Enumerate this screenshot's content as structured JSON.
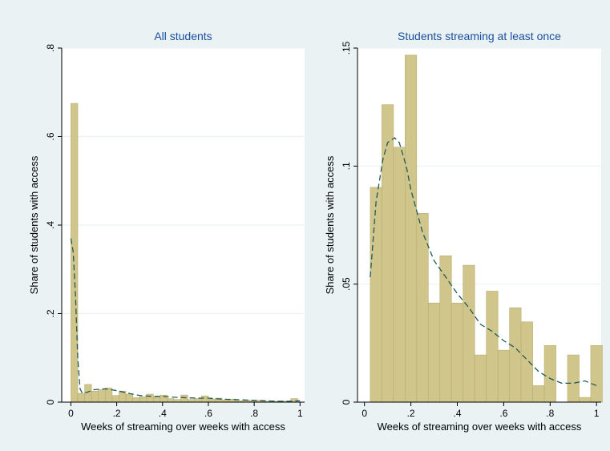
{
  "colors": {
    "outer_bg": "#eaf2f3",
    "plot_bg": "#ffffff",
    "bar_fill": "#d0c58a",
    "bar_stroke": "#b8ad70",
    "density_line": "#1e5a5a",
    "grid": "#eaf2f3",
    "title": "#1a4fa0"
  },
  "chart_data": [
    {
      "type": "bar",
      "title": "All students",
      "xlabel": "Weeks of streaming over weeks with access",
      "ylabel": "Share of students with access",
      "xlim": [
        -0.04,
        1.02
      ],
      "ylim": [
        0,
        0.8
      ],
      "x_ticks": [
        0,
        0.2,
        0.4,
        0.6,
        0.8,
        1
      ],
      "x_tick_labels": [
        "0",
        ".2",
        ".4",
        ".6",
        ".8",
        "1"
      ],
      "y_ticks": [
        0,
        0.2,
        0.4,
        0.6,
        0.8
      ],
      "y_tick_labels": [
        "0",
        ".2",
        ".4",
        ".6",
        ".8"
      ],
      "grid": true,
      "bins": [
        {
          "x0": 0.0,
          "x1": 0.03,
          "value": 0.675
        },
        {
          "x0": 0.03,
          "x1": 0.06,
          "value": 0.02
        },
        {
          "x0": 0.06,
          "x1": 0.09,
          "value": 0.04
        },
        {
          "x0": 0.09,
          "x1": 0.12,
          "value": 0.025
        },
        {
          "x0": 0.12,
          "x1": 0.15,
          "value": 0.028
        },
        {
          "x0": 0.15,
          "x1": 0.18,
          "value": 0.032
        },
        {
          "x0": 0.18,
          "x1": 0.21,
          "value": 0.015
        },
        {
          "x0": 0.21,
          "x1": 0.24,
          "value": 0.025
        },
        {
          "x0": 0.24,
          "x1": 0.27,
          "value": 0.018
        },
        {
          "x0": 0.27,
          "x1": 0.3,
          "value": 0.01
        },
        {
          "x0": 0.3,
          "x1": 0.33,
          "value": 0.012
        },
        {
          "x0": 0.33,
          "x1": 0.36,
          "value": 0.018
        },
        {
          "x0": 0.36,
          "x1": 0.39,
          "value": 0.012
        },
        {
          "x0": 0.39,
          "x1": 0.42,
          "value": 0.016
        },
        {
          "x0": 0.42,
          "x1": 0.45,
          "value": 0.008
        },
        {
          "x0": 0.45,
          "x1": 0.48,
          "value": 0.006
        },
        {
          "x0": 0.48,
          "x1": 0.51,
          "value": 0.016
        },
        {
          "x0": 0.51,
          "x1": 0.54,
          "value": 0.006
        },
        {
          "x0": 0.54,
          "x1": 0.57,
          "value": 0.008
        },
        {
          "x0": 0.57,
          "x1": 0.6,
          "value": 0.014
        },
        {
          "x0": 0.6,
          "x1": 0.63,
          "value": 0.007
        },
        {
          "x0": 0.63,
          "x1": 0.66,
          "value": 0.009
        },
        {
          "x0": 0.66,
          "x1": 0.69,
          "value": 0.005
        },
        {
          "x0": 0.69,
          "x1": 0.72,
          "value": 0.007
        },
        {
          "x0": 0.72,
          "x1": 0.75,
          "value": 0.003
        },
        {
          "x0": 0.75,
          "x1": 0.78,
          "value": 0.005
        },
        {
          "x0": 0.78,
          "x1": 0.81,
          "value": 0.003
        },
        {
          "x0": 0.81,
          "x1": 0.84,
          "value": 0.004
        },
        {
          "x0": 0.84,
          "x1": 0.87,
          "value": 0.002
        },
        {
          "x0": 0.87,
          "x1": 0.9,
          "value": 0.002
        },
        {
          "x0": 0.9,
          "x1": 0.93,
          "value": 0.002
        },
        {
          "x0": 0.93,
          "x1": 0.96,
          "value": 0.002
        },
        {
          "x0": 0.96,
          "x1": 0.99,
          "value": 0.008
        }
      ],
      "density": {
        "x": [
          0.0,
          0.01,
          0.02,
          0.03,
          0.04,
          0.05,
          0.07,
          0.1,
          0.15,
          0.2,
          0.25,
          0.3,
          0.35,
          0.4,
          0.45,
          0.5,
          0.55,
          0.6,
          0.65,
          0.7,
          0.75,
          0.8,
          0.85,
          0.9,
          0.95,
          1.0
        ],
        "y": [
          0.37,
          0.34,
          0.24,
          0.1,
          0.03,
          0.02,
          0.022,
          0.028,
          0.03,
          0.026,
          0.02,
          0.015,
          0.013,
          0.013,
          0.011,
          0.01,
          0.009,
          0.009,
          0.007,
          0.006,
          0.005,
          0.004,
          0.003,
          0.002,
          0.002,
          0.003
        ]
      }
    },
    {
      "type": "bar",
      "title": "Students streaming at least once",
      "xlabel": "Weeks of streaming over weeks with access",
      "ylabel": "Share of students with access",
      "xlim": [
        -0.03,
        1.02
      ],
      "ylim": [
        0,
        0.15
      ],
      "x_ticks": [
        0,
        0.2,
        0.4,
        0.6,
        0.8,
        1
      ],
      "x_tick_labels": [
        "0",
        ".2",
        ".4",
        ".6",
        ".8",
        "1"
      ],
      "y_ticks": [
        0,
        0.05,
        0.1,
        0.15
      ],
      "y_tick_labels": [
        "0",
        ".05",
        ".1",
        ".15"
      ],
      "grid": true,
      "bins": [
        {
          "x0": 0.025,
          "x1": 0.075,
          "value": 0.091
        },
        {
          "x0": 0.075,
          "x1": 0.125,
          "value": 0.126
        },
        {
          "x0": 0.125,
          "x1": 0.175,
          "value": 0.108
        },
        {
          "x0": 0.175,
          "x1": 0.225,
          "value": 0.147
        },
        {
          "x0": 0.225,
          "x1": 0.275,
          "value": 0.08
        },
        {
          "x0": 0.275,
          "x1": 0.325,
          "value": 0.042
        },
        {
          "x0": 0.325,
          "x1": 0.375,
          "value": 0.062
        },
        {
          "x0": 0.375,
          "x1": 0.425,
          "value": 0.042
        },
        {
          "x0": 0.425,
          "x1": 0.475,
          "value": 0.058
        },
        {
          "x0": 0.475,
          "x1": 0.525,
          "value": 0.02
        },
        {
          "x0": 0.525,
          "x1": 0.575,
          "value": 0.047
        },
        {
          "x0": 0.575,
          "x1": 0.625,
          "value": 0.022
        },
        {
          "x0": 0.625,
          "x1": 0.675,
          "value": 0.04
        },
        {
          "x0": 0.675,
          "x1": 0.725,
          "value": 0.034
        },
        {
          "x0": 0.725,
          "x1": 0.775,
          "value": 0.007
        },
        {
          "x0": 0.775,
          "x1": 0.825,
          "value": 0.024
        },
        {
          "x0": 0.825,
          "x1": 0.875,
          "value": 0.0
        },
        {
          "x0": 0.875,
          "x1": 0.925,
          "value": 0.02
        },
        {
          "x0": 0.925,
          "x1": 0.975,
          "value": 0.002
        },
        {
          "x0": 0.975,
          "x1": 1.025,
          "value": 0.024
        }
      ],
      "density": {
        "x": [
          0.025,
          0.05,
          0.08,
          0.1,
          0.13,
          0.15,
          0.18,
          0.2,
          0.25,
          0.3,
          0.35,
          0.4,
          0.45,
          0.5,
          0.55,
          0.6,
          0.65,
          0.7,
          0.75,
          0.8,
          0.85,
          0.9,
          0.95,
          1.0
        ],
        "y": [
          0.053,
          0.085,
          0.103,
          0.11,
          0.112,
          0.11,
          0.1,
          0.09,
          0.072,
          0.06,
          0.053,
          0.046,
          0.04,
          0.033,
          0.03,
          0.026,
          0.023,
          0.018,
          0.013,
          0.01,
          0.008,
          0.008,
          0.009,
          0.007
        ]
      }
    }
  ]
}
